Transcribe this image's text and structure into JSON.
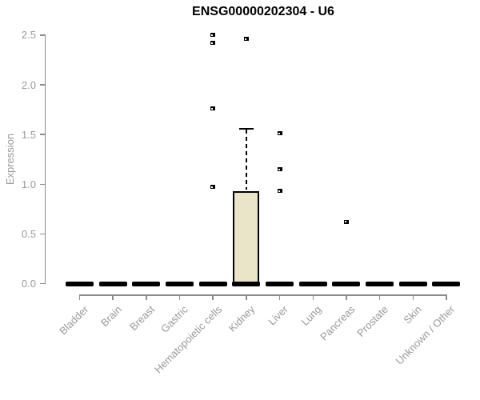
{
  "colors": {
    "box_fill": "#EAE4C8",
    "box_border": "#000000",
    "axis_line": "#8c8c8c",
    "tick_label": "#98999b",
    "title": "#000000",
    "outlier": "#000000"
  },
  "chart_data": {
    "type": "boxplot",
    "title": "ENSG00000202304 - U6",
    "xlabel": "",
    "ylabel": "Expression",
    "ylim": [
      0,
      2.5
    ],
    "ytick_labels": [
      "0.0",
      "0.5",
      "1.0",
      "1.5",
      "2.0",
      "2.5"
    ],
    "ytick_values": [
      0,
      0.5,
      1.0,
      1.5,
      2.0,
      2.5
    ],
    "grid": false,
    "legend": null,
    "categories": [
      "Bladder",
      "Brain",
      "Breast",
      "Gastric",
      "Hematopoietic cells",
      "Kidney",
      "Liver",
      "Lung",
      "Pancreas",
      "Prostate",
      "Skin",
      "Unknown / Other"
    ],
    "boxes": [
      {
        "category": "Bladder",
        "q1": 0,
        "median": 0,
        "q3": 0,
        "whisker_low": 0,
        "whisker_high": 0,
        "outliers": []
      },
      {
        "category": "Brain",
        "q1": 0,
        "median": 0,
        "q3": 0,
        "whisker_low": 0,
        "whisker_high": 0,
        "outliers": []
      },
      {
        "category": "Breast",
        "q1": 0,
        "median": 0,
        "q3": 0,
        "whisker_low": 0,
        "whisker_high": 0,
        "outliers": []
      },
      {
        "category": "Gastric",
        "q1": 0,
        "median": 0,
        "q3": 0,
        "whisker_low": 0,
        "whisker_high": 0,
        "outliers": []
      },
      {
        "category": "Hematopoietic cells",
        "q1": 0,
        "median": 0,
        "q3": 0,
        "whisker_low": 0,
        "whisker_high": 0,
        "outliers": [
          2.5,
          2.42,
          1.76,
          0.97
        ]
      },
      {
        "category": "Kidney",
        "q1": 0,
        "median": 0,
        "q3": 0.93,
        "whisker_low": 0,
        "whisker_high": 1.56,
        "outliers": [
          2.46
        ]
      },
      {
        "category": "Liver",
        "q1": 0,
        "median": 0,
        "q3": 0,
        "whisker_low": 0,
        "whisker_high": 0,
        "outliers": [
          1.51,
          1.15,
          0.93
        ]
      },
      {
        "category": "Lung",
        "q1": 0,
        "median": 0,
        "q3": 0,
        "whisker_low": 0,
        "whisker_high": 0,
        "outliers": []
      },
      {
        "category": "Pancreas",
        "q1": 0,
        "median": 0,
        "q3": 0,
        "whisker_low": 0,
        "whisker_high": 0,
        "outliers": [
          0.62
        ]
      },
      {
        "category": "Prostate",
        "q1": 0,
        "median": 0,
        "q3": 0,
        "whisker_low": 0,
        "whisker_high": 0,
        "outliers": []
      },
      {
        "category": "Skin",
        "q1": 0,
        "median": 0,
        "q3": 0,
        "whisker_low": 0,
        "whisker_high": 0,
        "outliers": []
      },
      {
        "category": "Unknown / Other",
        "q1": 0,
        "median": 0,
        "q3": 0,
        "whisker_low": 0,
        "whisker_high": 0,
        "outliers": []
      }
    ]
  }
}
